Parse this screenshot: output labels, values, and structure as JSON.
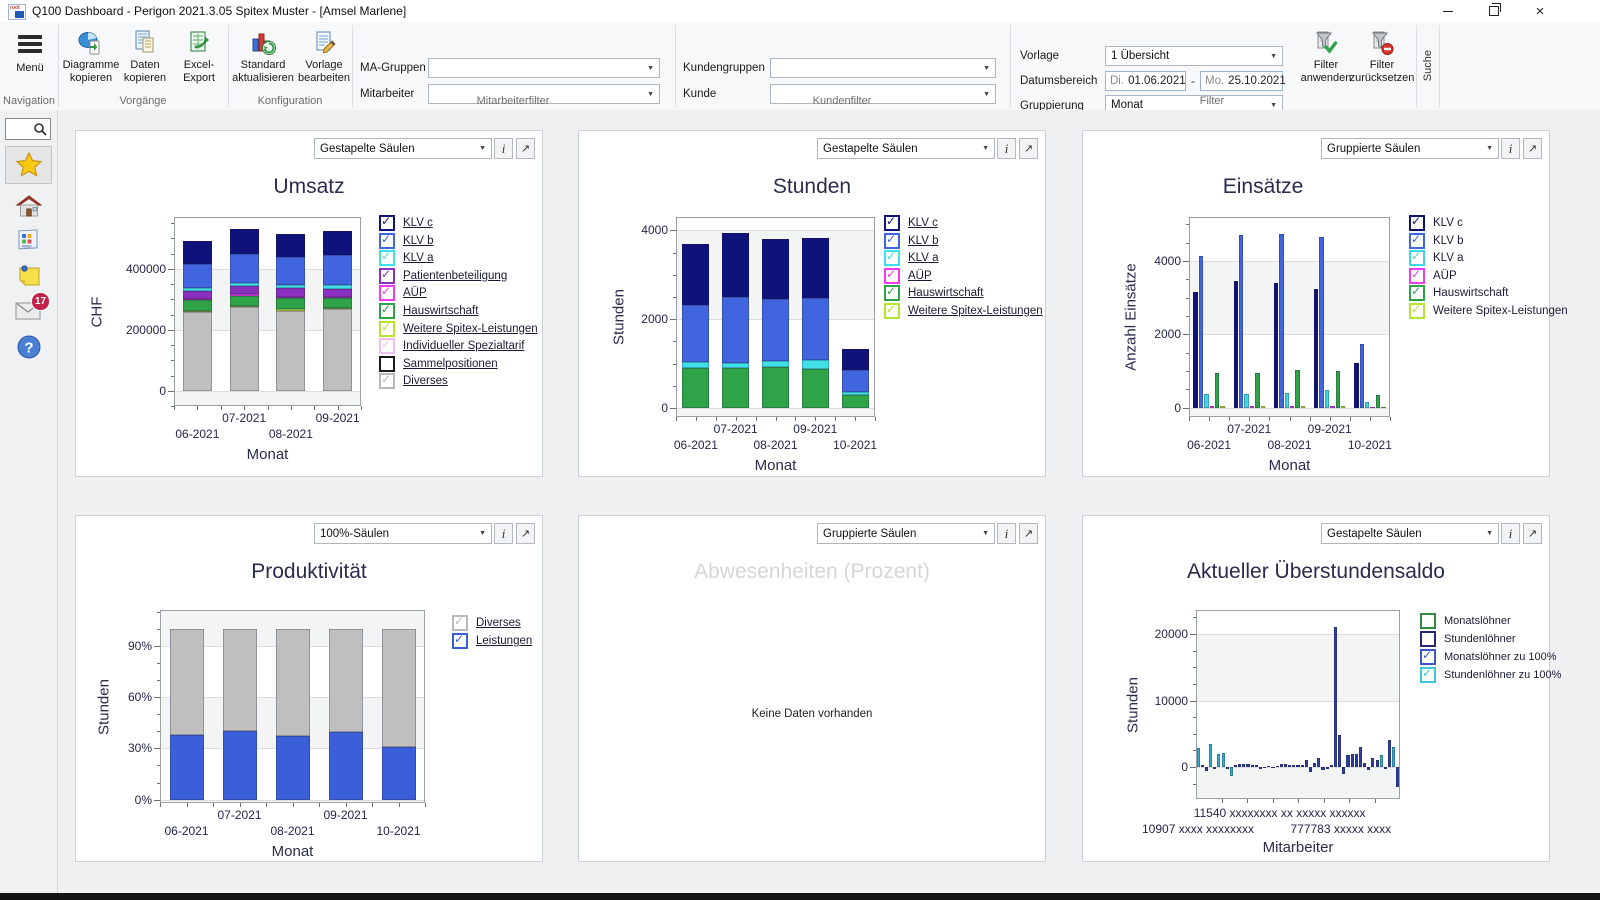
{
  "ui": {
    "info_button": "i",
    "expand_button": "↗",
    "combo_arrow": "▼",
    "minus": "-"
  },
  "titlebar": {
    "title": "Q100 Dashboard   -   Perigon 2021.3.05 Spitex Muster  -  [Amsel Marlene]"
  },
  "ribbon": {
    "menu_label": "Menü",
    "group_labels": [
      "Navigation",
      "Vorgänge",
      "Konfiguration",
      "Mitarbeiterfilter",
      "Kundenfilter",
      "Filter"
    ],
    "search_tab": "Suche",
    "buttons": {
      "diagramme": {
        "line1": "Diagramme",
        "line2": "kopieren"
      },
      "daten": {
        "line1": "Daten",
        "line2": "kopieren"
      },
      "excel": {
        "line1": "Excel-",
        "line2": "Export"
      },
      "standard": {
        "line1": "Standard",
        "line2": "aktualisieren"
      },
      "vorlage": {
        "line1": "Vorlage",
        "line2": "bearbeiten"
      },
      "filter_anwenden": {
        "line1": "Filter",
        "line2": "anwenden"
      },
      "filter_zuruecksetzen": {
        "line1": "Filter",
        "line2": "zurücksetzen"
      }
    },
    "fields": {
      "ma_gruppen": {
        "label": "MA-Gruppen",
        "value": ""
      },
      "mitarbeiter": {
        "label": "Mitarbeiter",
        "value": ""
      },
      "kundengruppen": {
        "label": "Kundengruppen",
        "value": ""
      },
      "kunde": {
        "label": "Kunde",
        "value": ""
      },
      "vorlage": {
        "label": "Vorlage",
        "value": "1 Übersicht"
      },
      "datumsbereich": {
        "label": "Datumsbereich",
        "from_prefix": "Di.",
        "from_value": "01.06.2021",
        "separator": "-",
        "to_prefix": "Mo.",
        "to_value": "25.10.2021"
      },
      "gruppierung": {
        "label": "Gruppierung",
        "value": "Monat"
      }
    }
  },
  "sidebar": {
    "badge_count": "17"
  },
  "panels": [
    {
      "chart_type": "Gestapelte Säulen"
    },
    {
      "chart_type": "Gestapelte Säulen"
    },
    {
      "chart_type": "Gruppierte Säulen"
    },
    {
      "chart_type": "100%-Säulen"
    },
    {
      "chart_type": "Gruppierte Säulen"
    },
    {
      "chart_type": "Gestapelte Säulen"
    }
  ],
  "chart_data": [
    {
      "type": "bar",
      "stacked": true,
      "title": "Umsatz",
      "ylabel": "CHF",
      "xlabel": "Monat",
      "categories": [
        "06-2021",
        "07-2021",
        "08-2021",
        "09-2021"
      ],
      "ylim": [
        -50000,
        570000
      ],
      "yticks": [
        0,
        200000,
        400000
      ],
      "yminor": 50000,
      "series": [
        {
          "name": "Diverses",
          "color": "#bfbfbf",
          "values": [
            257000,
            275000,
            263000,
            267000
          ]
        },
        {
          "name": "Weitere Spitex-Leistungen",
          "color": "#b4e330",
          "values": [
            4000,
            4000,
            4000,
            4000
          ]
        },
        {
          "name": "Hauswirtschaft",
          "color": "#2fa348",
          "values": [
            36000,
            33000,
            36000,
            32000
          ]
        },
        {
          "name": "AÜP",
          "color": "#ee3bef",
          "values": [
            4000,
            5000,
            5000,
            5000
          ]
        },
        {
          "name": "Patientenbeteiligung",
          "color": "#8b2fc0",
          "values": [
            26000,
            27000,
            30000,
            27000
          ]
        },
        {
          "name": "KLV a",
          "color": "#3fe0e8",
          "values": [
            10000,
            10000,
            8000,
            13000
          ]
        },
        {
          "name": "KLV b",
          "color": "#4165de",
          "values": [
            80000,
            93000,
            92000,
            98000
          ]
        },
        {
          "name": "KLV c",
          "color": "#10127c",
          "values": [
            75000,
            83000,
            77000,
            77000
          ]
        }
      ],
      "legend_underline": true,
      "legend": [
        {
          "label": "KLV c",
          "color": "#10127c",
          "checked": true
        },
        {
          "label": "KLV b",
          "color": "#4165de",
          "checked": true
        },
        {
          "label": "KLV a",
          "color": "#3fe0e8",
          "checked": true
        },
        {
          "label": "Patientenbeteiligung",
          "color": "#8b2fc0",
          "checked": true
        },
        {
          "label": "AÜP",
          "color": "#ee3bef",
          "checked": true
        },
        {
          "label": "Hauswirtschaft",
          "color": "#2fa348",
          "checked": true
        },
        {
          "label": "Weitere Spitex-Leistungen",
          "color": "#b4e330",
          "checked": true
        },
        {
          "label": "Individueller Spezialtarif",
          "color": "#f1bff2",
          "checked": true
        },
        {
          "label": "Sammelpositionen",
          "color": "#1a1a1a",
          "checked": false
        },
        {
          "label": "Diverses",
          "color": "#b9b9b9",
          "checked": true
        }
      ]
    },
    {
      "type": "bar",
      "stacked": true,
      "title": "Stunden",
      "ylabel": "Stunden",
      "xlabel": "Monat",
      "categories": [
        "06-2021",
        "07-2021",
        "08-2021",
        "09-2021",
        "10-2021"
      ],
      "ylim": [
        -200,
        4300
      ],
      "yticks": [
        0,
        2000,
        4000
      ],
      "yminor": 500,
      "series": [
        {
          "name": "Hauswirtschaft",
          "color": "#2fa348",
          "values": [
            900,
            905,
            930,
            880,
            300
          ]
        },
        {
          "name": "KLV a",
          "color": "#3fe0e8",
          "values": [
            130,
            110,
            130,
            210,
            60
          ]
        },
        {
          "name": "KLV b",
          "color": "#4165de",
          "values": [
            1280,
            1485,
            1390,
            1390,
            490
          ]
        },
        {
          "name": "KLV c",
          "color": "#10127c",
          "values": [
            1390,
            1430,
            1350,
            1340,
            480
          ]
        }
      ],
      "legend_underline": true,
      "legend": [
        {
          "label": "KLV c",
          "color": "#10127c",
          "checked": true
        },
        {
          "label": "KLV b",
          "color": "#4165de",
          "checked": true
        },
        {
          "label": "KLV a",
          "color": "#3fe0e8",
          "checked": true
        },
        {
          "label": "AÜP",
          "color": "#ee3bef",
          "checked": true
        },
        {
          "label": "Hauswirtschaft",
          "color": "#2fa348",
          "checked": true
        },
        {
          "label": "Weitere Spitex-Leistungen",
          "color": "#b4e330",
          "checked": true
        }
      ]
    },
    {
      "type": "bar",
      "grouped": true,
      "title": "Einsätze",
      "ylabel": "Anzahl Einsätze",
      "xlabel": "Monat",
      "categories": [
        "06-2021",
        "07-2021",
        "08-2021",
        "09-2021",
        "10-2021"
      ],
      "ylim": [
        -250,
        5200
      ],
      "yticks": [
        0,
        2000,
        4000
      ],
      "yminor": 500,
      "series": [
        {
          "name": "KLV c",
          "color": "#10127c",
          "values": [
            3150,
            3450,
            3400,
            3250,
            1230
          ]
        },
        {
          "name": "KLV b",
          "color": "#4165de",
          "values": [
            4150,
            4700,
            4750,
            4650,
            1750
          ]
        },
        {
          "name": "KLV a",
          "color": "#3fd6e0",
          "values": [
            380,
            380,
            400,
            490,
            160
          ]
        },
        {
          "name": "AÜP",
          "color": "#ee3bef",
          "values": [
            40,
            40,
            40,
            40,
            20
          ]
        },
        {
          "name": "Hauswirtschaft",
          "color": "#2fa348",
          "values": [
            950,
            950,
            1020,
            990,
            350
          ]
        },
        {
          "name": "Weitere Spitex-Leistungen",
          "color": "#b4e330",
          "values": [
            40,
            40,
            40,
            40,
            20
          ]
        }
      ],
      "legend_underline": false,
      "legend": [
        {
          "label": "KLV c",
          "color": "#10127c",
          "checked": true
        },
        {
          "label": "KLV b",
          "color": "#4165de",
          "checked": true
        },
        {
          "label": "KLV a",
          "color": "#3fd6e0",
          "checked": true
        },
        {
          "label": "AÜP",
          "color": "#ee3bef",
          "checked": true
        },
        {
          "label": "Hauswirtschaft",
          "color": "#2fa348",
          "checked": true
        },
        {
          "label": "Weitere Spitex-Leistungen",
          "color": "#b4e330",
          "checked": true
        }
      ]
    },
    {
      "type": "bar",
      "stacked": true,
      "title": "Produktivität",
      "ylabel": "Stunden",
      "xlabel": "Monat",
      "categories": [
        "06-2021",
        "07-2021",
        "08-2021",
        "09-2021",
        "10-2021"
      ],
      "ylim": [
        -2,
        111
      ],
      "yticks": [
        0,
        30,
        60,
        90
      ],
      "yminor": 10,
      "unit": "%",
      "series": [
        {
          "name": "Leistungen",
          "color": "#3a5fd9",
          "values": [
            38,
            40,
            37,
            39.5,
            31
          ]
        },
        {
          "name": "Diverses",
          "color": "#bfbfbf",
          "values": [
            62,
            60,
            63,
            60.5,
            69
          ]
        }
      ],
      "legend_underline": true,
      "legend": [
        {
          "label": "Diverses",
          "color": "#b9b9b9",
          "checked": true
        },
        {
          "label": "Leistungen",
          "color": "#3a5fd9",
          "checked": true
        }
      ]
    },
    {
      "type": "empty",
      "title": "Abwesenheiten (Prozent)",
      "message": "Keine Daten vorhanden"
    },
    {
      "type": "bar",
      "multi": true,
      "title": "Aktueller Überstundensaldo",
      "ylabel": "Stunden",
      "xlabel": "Mitarbeiter",
      "ylim": [
        -4800,
        23600
      ],
      "yticks": [
        0,
        10000,
        20000
      ],
      "yminor": 2500,
      "colors": {
        "m": "#2c3e9e",
        "s": "#38abc6"
      },
      "bars": [
        {
          "v": 2900,
          "c": "s"
        },
        {
          "v": 350,
          "c": "m"
        },
        {
          "v": -600,
          "c": "m"
        },
        {
          "v": 3500,
          "c": "s"
        },
        {
          "v": -300,
          "c": "m"
        },
        {
          "v": 1900,
          "c": "s"
        },
        {
          "v": 2100,
          "c": "s"
        },
        {
          "v": -250,
          "c": "m"
        },
        {
          "v": -1300,
          "c": "s"
        },
        {
          "v": 250,
          "c": "m"
        },
        {
          "v": 500,
          "c": "m"
        },
        {
          "v": 450,
          "c": "m"
        },
        {
          "v": 400,
          "c": "m"
        },
        {
          "v": 300,
          "c": "m"
        },
        {
          "v": 250,
          "c": "m"
        },
        {
          "v": -250,
          "c": "m"
        },
        {
          "v": -200,
          "c": "m"
        },
        {
          "v": 150,
          "c": "m"
        },
        {
          "v": -200,
          "c": "m"
        },
        {
          "v": 200,
          "c": "m"
        },
        {
          "v": 450,
          "c": "m"
        },
        {
          "v": 400,
          "c": "m"
        },
        {
          "v": 350,
          "c": "m"
        },
        {
          "v": 300,
          "c": "m"
        },
        {
          "v": 350,
          "c": "m"
        },
        {
          "v": 250,
          "c": "m"
        },
        {
          "v": 1100,
          "c": "m"
        },
        {
          "v": -800,
          "c": "m"
        },
        {
          "v": 550,
          "c": "m"
        },
        {
          "v": 1300,
          "c": "m"
        },
        {
          "v": -450,
          "c": "m"
        },
        {
          "v": -350,
          "c": "m"
        },
        {
          "v": 350,
          "c": "m"
        },
        {
          "v": 21000,
          "c": "m"
        },
        {
          "v": 4800,
          "c": "m"
        },
        {
          "v": -1100,
          "c": "m"
        },
        {
          "v": 1800,
          "c": "m"
        },
        {
          "v": 1900,
          "c": "m"
        },
        {
          "v": 2000,
          "c": "m"
        },
        {
          "v": 3000,
          "c": "m"
        },
        {
          "v": 650,
          "c": "m"
        },
        {
          "v": -500,
          "c": "m"
        },
        {
          "v": 1300,
          "c": "m"
        },
        {
          "v": 1100,
          "c": "m"
        },
        {
          "v": 1800,
          "c": "s"
        },
        {
          "v": -300,
          "c": "m"
        },
        {
          "v": 4100,
          "c": "m"
        },
        {
          "v": 3000,
          "c": "s"
        },
        {
          "v": -3000,
          "c": "m"
        }
      ],
      "xticklabels": [
        {
          "text": "11540 xxxxxxxx xx xxxxx xxxxxx",
          "row": 0,
          "fx": 0.41
        },
        {
          "text": "10907 xxxx xxxxxxxx",
          "row": 1,
          "fx": 0.01
        },
        {
          "text": "777783 xxxxx xxxx",
          "row": 1,
          "fx": 0.71
        }
      ],
      "legend_underline": false,
      "legend": [
        {
          "label": "Monatslöhner",
          "color": "#2e8b44",
          "checked": false
        },
        {
          "label": "Stundenlöhner",
          "color": "#23266e",
          "checked": false
        },
        {
          "label": "Monatslöhner zu 100%",
          "color": "#3a56c8",
          "checked": true
        },
        {
          "label": "Stundenlöhner zu 100%",
          "color": "#3fc6dc",
          "checked": true
        }
      ]
    }
  ]
}
